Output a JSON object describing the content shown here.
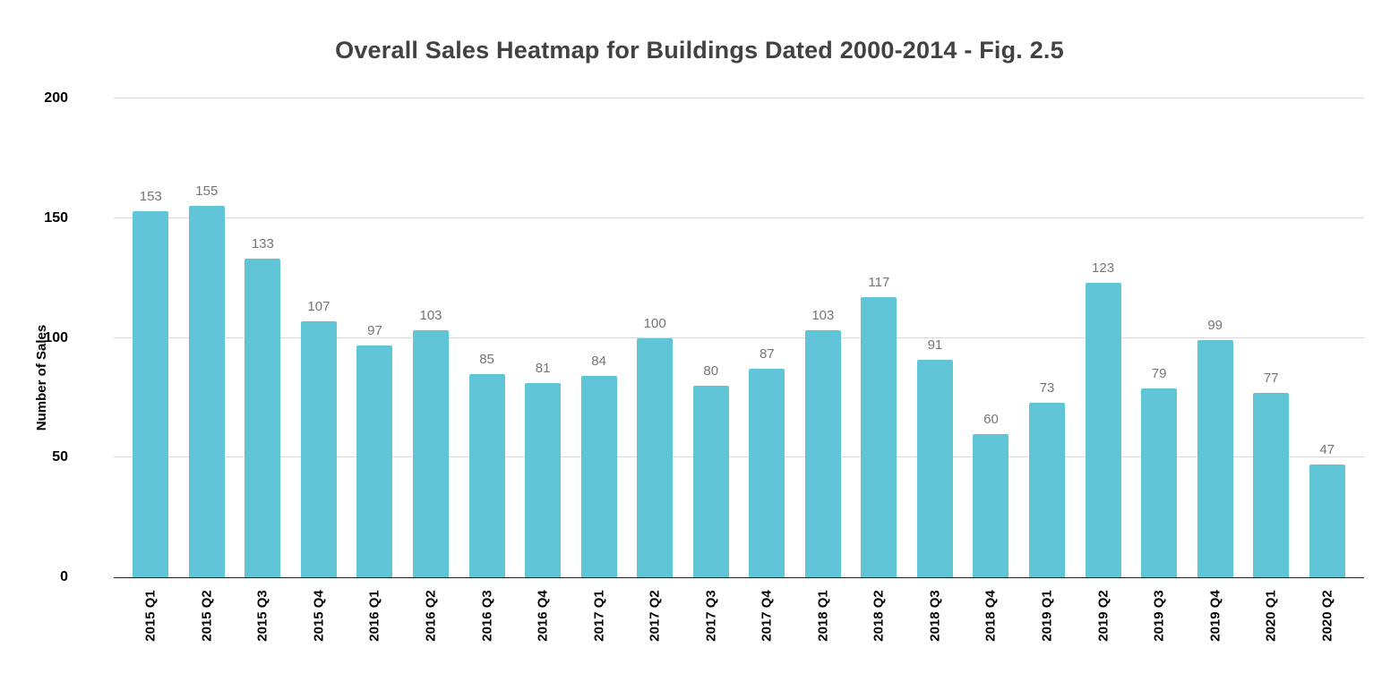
{
  "chart_data": {
    "type": "bar",
    "title": "Overall Sales Heatmap for Buildings Dated 2000-2014 - Fig. 2.5",
    "xlabel": "",
    "ylabel": "Number of Sales",
    "categories": [
      "2015 Q1",
      "2015 Q2",
      "2015 Q3",
      "2015 Q4",
      "2016 Q1",
      "2016 Q2",
      "2016 Q3",
      "2016 Q4",
      "2017 Q1",
      "2017 Q2",
      "2017 Q3",
      "2017 Q4",
      "2018 Q1",
      "2018 Q2",
      "2018 Q3",
      "2018 Q4",
      "2019 Q1",
      "2019 Q2",
      "2019 Q3",
      "2019 Q4",
      "2020 Q1",
      "2020 Q2"
    ],
    "values": [
      153,
      155,
      133,
      107,
      97,
      103,
      85,
      81,
      84,
      100,
      80,
      87,
      103,
      117,
      91,
      60,
      73,
      123,
      79,
      99,
      77,
      47
    ],
    "ylim": [
      0,
      200
    ],
    "yticks": [
      0,
      50,
      100,
      150,
      200
    ],
    "grid": true,
    "legend_position": "none",
    "colors": {
      "bar": "#5fc5d7",
      "value_label": "#757575",
      "gridline": "#d8d8d8",
      "baseline": "#212121",
      "title": "#424242",
      "axis_text": "#000000"
    }
  }
}
